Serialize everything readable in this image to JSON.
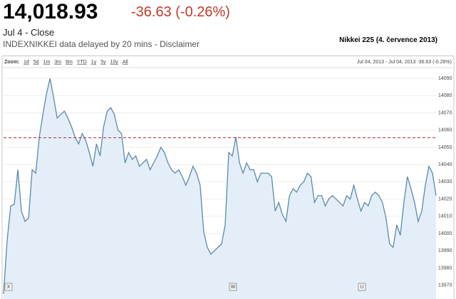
{
  "header": {
    "price": "14,018.93",
    "change": "-36.63 (-0.26%)",
    "date": "Jul 4 - Close",
    "delay_note": "INDEXNIKKEI data delayed by 20 mins - Disclaimer",
    "chart_title": "Nikkei 225 (4. července 2013)"
  },
  "chart_data": {
    "type": "line",
    "zoom_label": "Zoom:",
    "zoom_options": [
      "1d",
      "5d",
      "1m",
      "3m",
      "6m",
      "YTD",
      "1y",
      "5y",
      "10y",
      "All"
    ],
    "range_info": "Jul 04, 2013 - Jul 04, 2013 -36.63 (-0.26%)",
    "color": "#5d8aa8",
    "fill": "#e3eef8",
    "previous_close": 14055.56,
    "flags": [
      "X",
      "W",
      "U"
    ],
    "ylim": [
      13962,
      14095
    ],
    "yticks": [
      13970,
      13980,
      13990,
      14000,
      14010,
      14020,
      14030,
      14040,
      14050,
      14060,
      14070,
      14080,
      14090
    ],
    "values": [
      13965,
      13996,
      14016,
      14017,
      14037,
      14013,
      14007,
      14009,
      14037,
      14035,
      14056,
      14069,
      14081,
      14090,
      14079,
      14067,
      14069,
      14071,
      14067,
      14062,
      14056,
      14052,
      14058,
      14054,
      14047,
      14039,
      14052,
      14045,
      14062,
      14071,
      14073,
      14069,
      14060,
      14058,
      14041,
      14047,
      14043,
      14045,
      14039,
      14041,
      14043,
      14037,
      14041,
      14045,
      14050,
      14047,
      14041,
      14037,
      14035,
      14037,
      14033,
      14028,
      14033,
      14039,
      14035,
      14028,
      14001,
      13992,
      13988,
      13990,
      13992,
      13994,
      14005,
      14047,
      14045,
      14056,
      14041,
      14035,
      14041,
      14037,
      14037,
      14030,
      14035,
      14035,
      14035,
      14033,
      14013,
      14018,
      14011,
      14007,
      14022,
      14026,
      14024,
      14028,
      14030,
      14035,
      14033,
      14018,
      14022,
      14022,
      14016,
      14020,
      14022,
      14020,
      14018,
      14016,
      14022,
      14020,
      14028,
      14020,
      14013,
      14018,
      14016,
      14022,
      14024,
      14022,
      14018,
      14009,
      13994,
      13992,
      14005,
      13999,
      14018,
      14033,
      14026,
      14018,
      14007,
      14013,
      14028,
      14039,
      14035,
      14022
    ]
  }
}
